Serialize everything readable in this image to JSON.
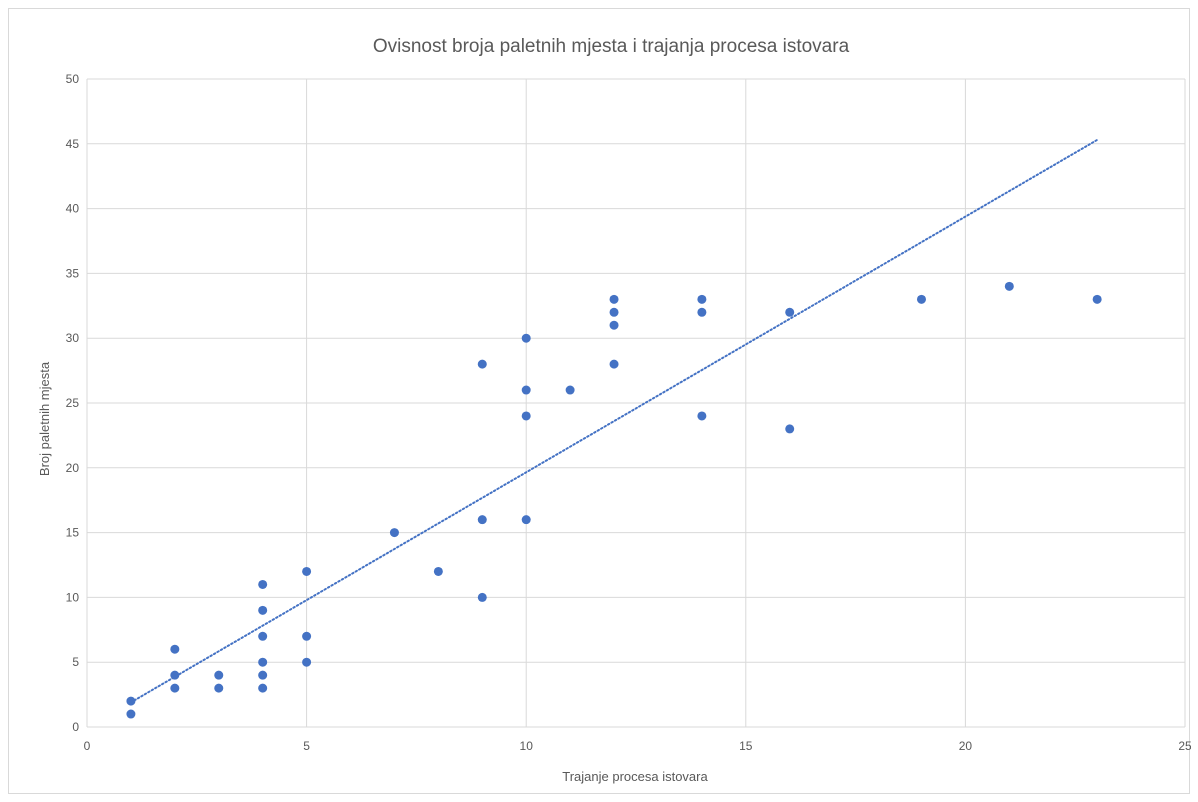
{
  "chart_data": {
    "type": "scatter",
    "title": "Ovisnost broja paletnih mjesta i trajanja procesa istovara",
    "xlabel": "Trajanje procesa istovara",
    "ylabel": "Broj paletnih mjesta",
    "xlim": [
      0,
      25
    ],
    "ylim": [
      0,
      50
    ],
    "xticks": [
      "0",
      "5",
      "10",
      "15",
      "20",
      "25"
    ],
    "yticks": [
      "0",
      "5",
      "10",
      "15",
      "20",
      "25",
      "30",
      "35",
      "40",
      "45",
      "50"
    ],
    "grid": true,
    "legend": "none",
    "marker_color": "#4472C4",
    "trendline": {
      "type": "linear",
      "style": "dotted",
      "x": [
        1,
        23
      ],
      "y": [
        1.9,
        45.3
      ]
    },
    "points": [
      {
        "x": 1,
        "y": 2
      },
      {
        "x": 1,
        "y": 1
      },
      {
        "x": 2,
        "y": 6
      },
      {
        "x": 2,
        "y": 4
      },
      {
        "x": 2,
        "y": 3
      },
      {
        "x": 3,
        "y": 4
      },
      {
        "x": 3,
        "y": 3
      },
      {
        "x": 4,
        "y": 11
      },
      {
        "x": 4,
        "y": 9
      },
      {
        "x": 4,
        "y": 7
      },
      {
        "x": 4,
        "y": 5
      },
      {
        "x": 4,
        "y": 4
      },
      {
        "x": 4,
        "y": 3
      },
      {
        "x": 5,
        "y": 12
      },
      {
        "x": 5,
        "y": 7
      },
      {
        "x": 5,
        "y": 5
      },
      {
        "x": 7,
        "y": 15
      },
      {
        "x": 8,
        "y": 12
      },
      {
        "x": 9,
        "y": 28
      },
      {
        "x": 9,
        "y": 16
      },
      {
        "x": 9,
        "y": 10
      },
      {
        "x": 10,
        "y": 30
      },
      {
        "x": 10,
        "y": 26
      },
      {
        "x": 10,
        "y": 24
      },
      {
        "x": 10,
        "y": 16
      },
      {
        "x": 11,
        "y": 26
      },
      {
        "x": 12,
        "y": 33
      },
      {
        "x": 12,
        "y": 32
      },
      {
        "x": 12,
        "y": 31
      },
      {
        "x": 12,
        "y": 28
      },
      {
        "x": 14,
        "y": 33
      },
      {
        "x": 14,
        "y": 32
      },
      {
        "x": 14,
        "y": 24
      },
      {
        "x": 16,
        "y": 32
      },
      {
        "x": 16,
        "y": 23
      },
      {
        "x": 19,
        "y": 33
      },
      {
        "x": 21,
        "y": 34
      },
      {
        "x": 23,
        "y": 33
      }
    ]
  }
}
